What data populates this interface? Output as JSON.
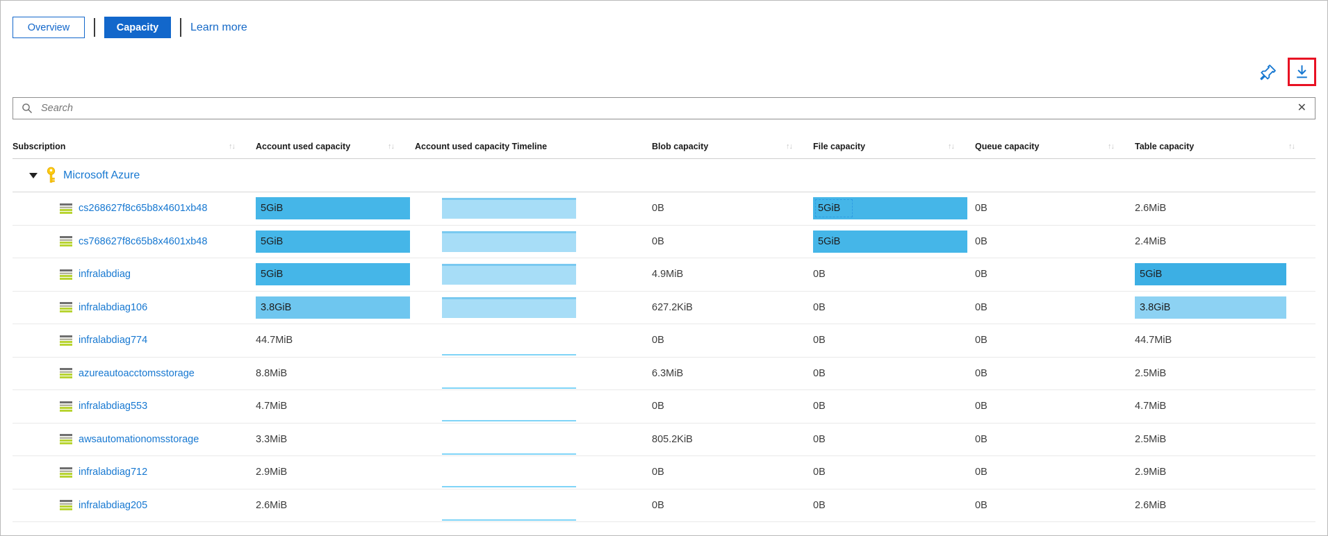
{
  "tabs": {
    "overview": "Overview",
    "capacity": "Capacity",
    "learn_more": "Learn more"
  },
  "actions": {
    "pin_icon": "pin",
    "download_icon": "download",
    "download_highlight_color": "#e81123"
  },
  "search": {
    "placeholder": "Search",
    "clear_icon": "x"
  },
  "colors": {
    "accent_blue": "#1267cb",
    "link_blue": "#1778d1",
    "bar_full": "#45b6e8",
    "bar_medium": "#6ec6ef",
    "bar_light": "#8dd2f3",
    "timeline_fill": "#a7ddf7",
    "timeline_edge": "#79c9f0"
  },
  "table": {
    "columns": [
      {
        "label": "Subscription",
        "sortable": true
      },
      {
        "label": "Account used capacity",
        "sortable": true
      },
      {
        "label": "Account used capacity Timeline",
        "sortable": false
      },
      {
        "label": "Blob capacity",
        "sortable": true
      },
      {
        "label": "File capacity",
        "sortable": true
      },
      {
        "label": "Queue capacity",
        "sortable": true
      },
      {
        "label": "Table capacity",
        "sortable": true
      }
    ],
    "sort_glyph": "↑↓",
    "group": {
      "label": "Microsoft Azure"
    },
    "rows": [
      {
        "name": "cs268627f8c65b8x4601xb48",
        "account": {
          "text": "5GiB",
          "bar": true,
          "color": "#45b6e8"
        },
        "timeline": "full",
        "blob": {
          "text": "0B"
        },
        "file": {
          "text": "5GiB",
          "bar": true,
          "color": "#45b6e8",
          "focused": true
        },
        "queue": {
          "text": "0B"
        },
        "table": {
          "text": "2.6MiB"
        }
      },
      {
        "name": "cs768627f8c65b8x4601xb48",
        "account": {
          "text": "5GiB",
          "bar": true,
          "color": "#45b6e8"
        },
        "timeline": "full",
        "blob": {
          "text": "0B"
        },
        "file": {
          "text": "5GiB",
          "bar": true,
          "color": "#45b6e8"
        },
        "queue": {
          "text": "0B"
        },
        "table": {
          "text": "2.4MiB"
        }
      },
      {
        "name": "infralabdiag",
        "account": {
          "text": "5GiB",
          "bar": true,
          "color": "#45b6e8"
        },
        "timeline": "full",
        "blob": {
          "text": "4.9MiB"
        },
        "file": {
          "text": "0B"
        },
        "queue": {
          "text": "0B"
        },
        "table": {
          "text": "5GiB",
          "bar": true,
          "color": "#3cafe4"
        }
      },
      {
        "name": "infralabdiag106",
        "account": {
          "text": "3.8GiB",
          "bar": true,
          "color": "#6ec6ef"
        },
        "timeline": "full",
        "blob": {
          "text": "627.2KiB"
        },
        "file": {
          "text": "0B"
        },
        "queue": {
          "text": "0B"
        },
        "table": {
          "text": "3.8GiB",
          "bar": true,
          "color": "#8dd2f3"
        }
      },
      {
        "name": "infralabdiag774",
        "account": {
          "text": "44.7MiB"
        },
        "timeline": "flat",
        "blob": {
          "text": "0B"
        },
        "file": {
          "text": "0B"
        },
        "queue": {
          "text": "0B"
        },
        "table": {
          "text": "44.7MiB"
        }
      },
      {
        "name": "azureautoacctomsstorage",
        "account": {
          "text": "8.8MiB"
        },
        "timeline": "flat",
        "blob": {
          "text": "6.3MiB"
        },
        "file": {
          "text": "0B"
        },
        "queue": {
          "text": "0B"
        },
        "table": {
          "text": "2.5MiB"
        }
      },
      {
        "name": "infralabdiag553",
        "account": {
          "text": "4.7MiB"
        },
        "timeline": "flat",
        "blob": {
          "text": "0B"
        },
        "file": {
          "text": "0B"
        },
        "queue": {
          "text": "0B"
        },
        "table": {
          "text": "4.7MiB"
        }
      },
      {
        "name": "awsautomationomsstorage",
        "account": {
          "text": "3.3MiB"
        },
        "timeline": "flat",
        "blob": {
          "text": "805.2KiB"
        },
        "file": {
          "text": "0B"
        },
        "queue": {
          "text": "0B"
        },
        "table": {
          "text": "2.5MiB"
        }
      },
      {
        "name": "infralabdiag712",
        "account": {
          "text": "2.9MiB"
        },
        "timeline": "flat",
        "blob": {
          "text": "0B"
        },
        "file": {
          "text": "0B"
        },
        "queue": {
          "text": "0B"
        },
        "table": {
          "text": "2.9MiB"
        }
      },
      {
        "name": "infralabdiag205",
        "account": {
          "text": "2.6MiB"
        },
        "timeline": "flat",
        "blob": {
          "text": "0B"
        },
        "file": {
          "text": "0B"
        },
        "queue": {
          "text": "0B"
        },
        "table": {
          "text": "2.6MiB"
        }
      }
    ]
  }
}
